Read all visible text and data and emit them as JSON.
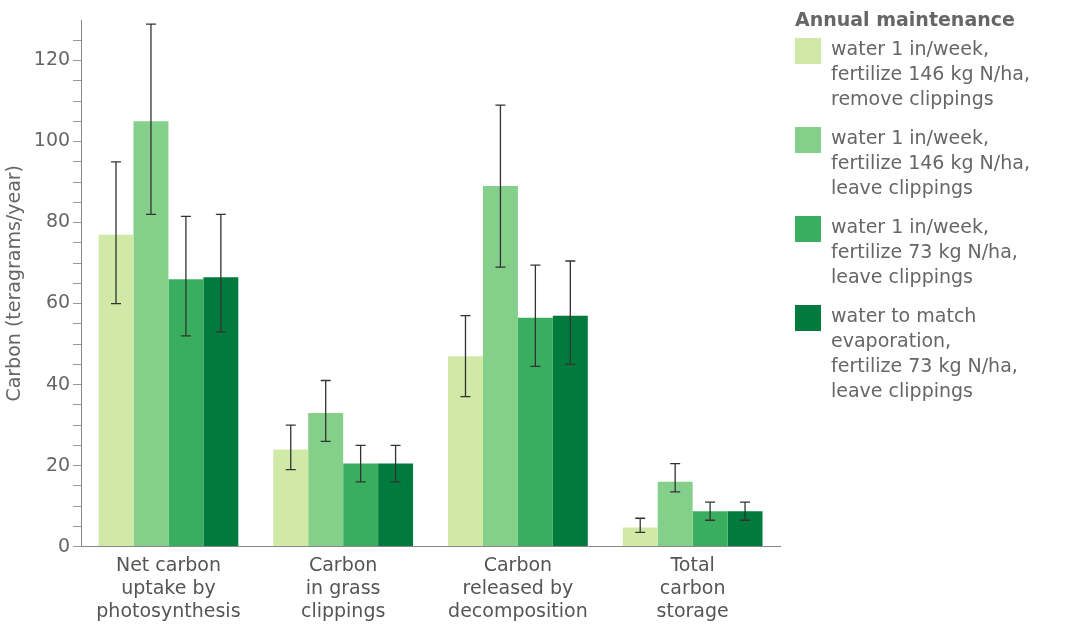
{
  "chart_data": {
    "type": "bar",
    "ylabel": "Carbon (teragrams/year)",
    "legend_title": "Annual maintenance",
    "legend": "right",
    "grid": false,
    "categories": [
      "Net carbon\nuptake by\nphotosynthesis",
      "Carbon\nin grass\nclippings",
      "Carbon\nreleased by\ndecomposition",
      "Total\ncarbon\nstorage"
    ],
    "ylim": [
      0,
      130
    ],
    "yticks": [
      0,
      {
        "value": 5,
        "label": null
      },
      {
        "value": 10,
        "label": null
      },
      {
        "value": 15,
        "label": null
      },
      20,
      {
        "value": 25,
        "label": null
      },
      {
        "value": 30,
        "label": null
      },
      {
        "value": 35,
        "label": null
      },
      40,
      {
        "value": 45,
        "label": null
      },
      {
        "value": 50,
        "label": null
      },
      {
        "value": 55,
        "label": null
      },
      60,
      {
        "value": 65,
        "label": null
      },
      {
        "value": 70,
        "label": null
      },
      {
        "value": 75,
        "label": null
      },
      80,
      {
        "value": 85,
        "label": null
      },
      {
        "value": 90,
        "label": null
      },
      {
        "value": 95,
        "label": null
      },
      100,
      {
        "value": 105,
        "label": null
      },
      {
        "value": 110,
        "label": null
      },
      {
        "value": 115,
        "label": null
      },
      120,
      {
        "value": 125,
        "label": null
      }
    ],
    "series": [
      {
        "name": "water 1 in/week,\nfertilize 146 kg N/ha,\nremove clippings",
        "color": "#d0e9a6",
        "values": [
          77,
          24,
          47,
          4.7
        ],
        "errors": [
          [
            60,
            95
          ],
          [
            19,
            30
          ],
          [
            37,
            57
          ],
          [
            3.5,
            7
          ]
        ]
      },
      {
        "name": "water 1 in/week,\nfertilize 146 kg N/ha,\nleave clippings",
        "color": "#84cf8a",
        "values": [
          105,
          33,
          89,
          16
        ],
        "errors": [
          [
            82,
            129
          ],
          [
            26,
            41
          ],
          [
            69,
            109
          ],
          [
            13.5,
            20.5
          ]
        ]
      },
      {
        "name": "water 1 in/week,\nfertilize 73 kg N/ha,\nleave clippings",
        "color": "#3aae5f",
        "values": [
          66,
          20.5,
          56.5,
          8.7
        ],
        "errors": [
          [
            52,
            81.5
          ],
          [
            16,
            25
          ],
          [
            44.5,
            69.5
          ],
          [
            6.5,
            11
          ]
        ]
      },
      {
        "name": "water to match\nevaporation,\nfertilize 73 kg N/ha,\nleave clippings",
        "color": "#007a3d",
        "values": [
          66.5,
          20.5,
          57,
          8.7
        ],
        "errors": [
          [
            53,
            82
          ],
          [
            16,
            25
          ],
          [
            45,
            70.5
          ],
          [
            6.5,
            11
          ]
        ]
      }
    ]
  }
}
